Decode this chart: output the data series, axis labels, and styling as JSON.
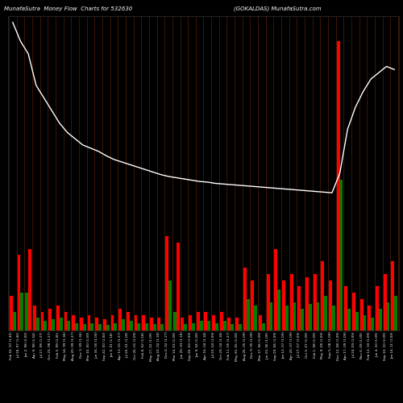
{
  "title_left": "MunafaSutra  Money Flow  Charts for 532630",
  "title_right": "(GOKALDAS) MunafaSutra.com",
  "background_color": "#000000",
  "n_bars": 50,
  "bar_width": 0.4,
  "figsize": [
    5.0,
    5.0
  ],
  "dpi": 100,
  "ylim_max": 500,
  "bar1_heights": [
    55,
    120,
    60,
    40,
    30,
    35,
    40,
    30,
    25,
    20,
    25,
    20,
    18,
    25,
    35,
    30,
    25,
    25,
    20,
    20,
    150,
    30,
    20,
    25,
    30,
    30,
    25,
    30,
    20,
    20,
    100,
    80,
    25,
    90,
    130,
    80,
    90,
    70,
    85,
    90,
    110,
    80,
    460,
    70,
    60,
    50,
    40,
    70,
    90,
    110
  ],
  "bar1_colors": [
    "red",
    "red",
    "green",
    "red",
    "red",
    "red",
    "red",
    "red",
    "red",
    "red",
    "red",
    "red",
    "red",
    "red",
    "red",
    "red",
    "red",
    "red",
    "red",
    "red",
    "red",
    "green",
    "red",
    "red",
    "red",
    "red",
    "red",
    "red",
    "red",
    "red",
    "red",
    "red",
    "red",
    "red",
    "red",
    "red",
    "red",
    "red",
    "red",
    "red",
    "red",
    "red",
    "red",
    "red",
    "red",
    "red",
    "red",
    "red",
    "red",
    "red"
  ],
  "bar2_heights": [
    30,
    60,
    130,
    20,
    15,
    18,
    20,
    15,
    12,
    10,
    12,
    10,
    9,
    12,
    18,
    15,
    12,
    12,
    10,
    10,
    80,
    140,
    10,
    12,
    15,
    15,
    12,
    15,
    10,
    10,
    50,
    40,
    12,
    45,
    65,
    40,
    45,
    35,
    42,
    45,
    55,
    40,
    240,
    35,
    30,
    25,
    20,
    35,
    45,
    55
  ],
  "bar2_colors": [
    "green",
    "green",
    "red",
    "green",
    "green",
    "green",
    "green",
    "green",
    "green",
    "green",
    "green",
    "green",
    "green",
    "green",
    "green",
    "green",
    "green",
    "green",
    "green",
    "green",
    "green",
    "red",
    "green",
    "green",
    "green",
    "green",
    "green",
    "green",
    "green",
    "green",
    "green",
    "green",
    "green",
    "green",
    "green",
    "green",
    "green",
    "green",
    "green",
    "green",
    "green",
    "green",
    "green",
    "green",
    "green",
    "green",
    "green",
    "green",
    "green",
    "green"
  ],
  "line_y": [
    490,
    460,
    440,
    390,
    370,
    350,
    330,
    315,
    305,
    295,
    290,
    285,
    278,
    272,
    268,
    264,
    260,
    256,
    252,
    248,
    245,
    243,
    241,
    239,
    237,
    236,
    234,
    233,
    232,
    231,
    230,
    229,
    228,
    227,
    226,
    225,
    224,
    223,
    222,
    221,
    220,
    219,
    250,
    320,
    355,
    380,
    400,
    410,
    420,
    415
  ],
  "xlabels": [
    "Feb 16, 97 (1.45)",
    "Jul 18, 97 (1.45)",
    "Jan 2, 98 (2.00)",
    "Apr 9, 98 (1.54)",
    "Jul 17, 98 (1.27)",
    "Oct 23, 98 (1.27)",
    "Feb 5, 99 (1.45)",
    "May 14, 99 (1.36)",
    "Aug 20, 99 (1.27)",
    "Dec 3, 99 (1.36)",
    "Mar 10, 00 (1.09)",
    "Jun 16, 00 (1.00)",
    "Sep 22, 00 (1.00)",
    "Jan 5, 01 (1.18)",
    "Apr 13, 01 (1.27)",
    "Jul 20, 01 (1.18)",
    "Oct 26, 01 (1.09)",
    "Feb 8, 02 (1.18)",
    "May 17, 02 (1.09)",
    "Aug 23, 02 (1.18)",
    "Dec 6, 02 (1.27)",
    "Mar 14, 03 (1.09)",
    "Jun 20, 03 (1.18)",
    "Sep 26, 03 (1.09)",
    "Jan 9, 04 (1.09)",
    "Apr 16, 04 (1.18)",
    "Jul 23, 04 (1.09)",
    "Oct 29, 04 (1.18)",
    "Feb 11, 05 (1.27)",
    "May 20, 05 (1.09)",
    "Aug 26, 05 (1.09)",
    "Dec 9, 05 (1.09)",
    "Mar 17, 06 (1.09)",
    "Jun 23, 06 (1.09)",
    "Sep 29, 06 (1.09)",
    "Jan 12, 07 (1.09)",
    "Apr 20, 07 (1.09)",
    "Jul 27, 07 (1.09)",
    "Oct 5, 07 (1.09)",
    "Feb 1, 08 (1.09)",
    "May 9, 08 (1.09)",
    "Sep 5, 08 (1.09)",
    "Dec 12, 08 (1.09)",
    "Apr 17, 09 (1.09)",
    "Jul 24, 09 (1.09)",
    "Nov 6, 09 (1.09)",
    "Feb 12, 10 (1.09)",
    "Jun 4, 10 (1.09)",
    "Sep 10, 10 (1.09)",
    "Jan 14, 11 (1.09)"
  ]
}
